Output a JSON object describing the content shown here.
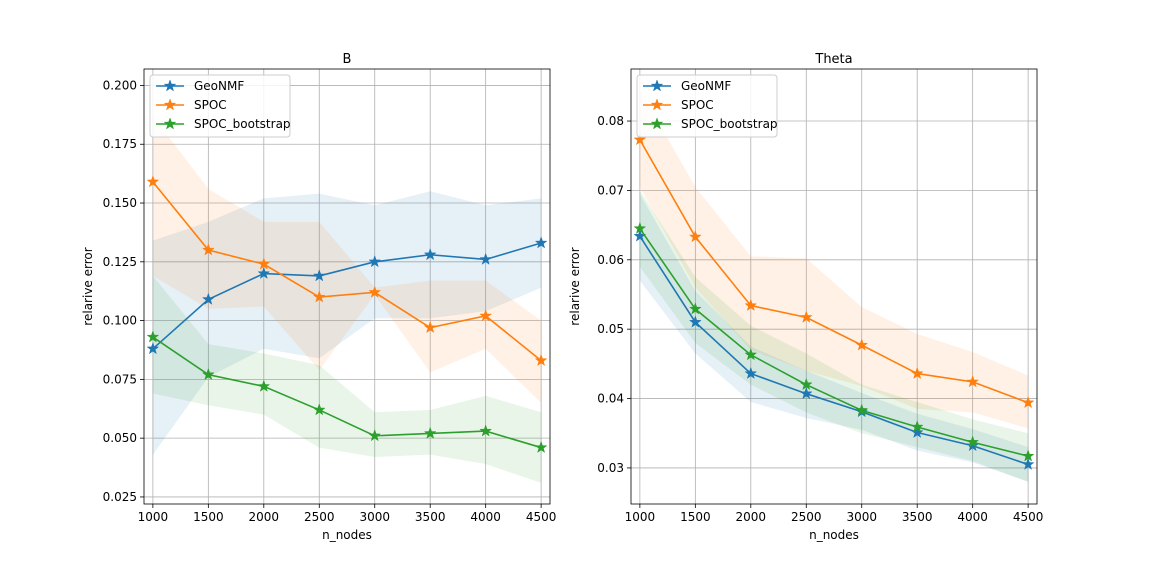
{
  "chart_data": [
    {
      "type": "line",
      "title": "B",
      "xlabel": "n_nodes",
      "ylabel": "relarive error",
      "x": [
        1000,
        1500,
        2000,
        2500,
        3000,
        3500,
        4000,
        4500
      ],
      "xlim": [
        920,
        4580
      ],
      "ylim": [
        0.022,
        0.207
      ],
      "yticks": [
        0.025,
        0.05,
        0.075,
        0.1,
        0.125,
        0.15,
        0.175,
        0.2
      ],
      "ytick_labels": [
        "0.025",
        "0.050",
        "0.075",
        "0.100",
        "0.125",
        "0.150",
        "0.175",
        "0.200"
      ],
      "xticks": [
        1000,
        1500,
        2000,
        2500,
        3000,
        3500,
        4000,
        4500
      ],
      "xtick_labels": [
        "1000",
        "1500",
        "2000",
        "2500",
        "3000",
        "3500",
        "4000",
        "4500"
      ],
      "grid": true,
      "legend_position": "top-left",
      "series": [
        {
          "name": "GeoNMF",
          "color": "#1f77b4",
          "values": [
            0.088,
            0.109,
            0.12,
            0.119,
            0.125,
            0.128,
            0.126,
            0.133
          ],
          "band_upper": [
            0.134,
            0.142,
            0.152,
            0.154,
            0.149,
            0.155,
            0.149,
            0.152
          ],
          "band_lower": [
            0.043,
            0.076,
            0.088,
            0.084,
            0.101,
            0.101,
            0.104,
            0.114
          ]
        },
        {
          "name": "SPOC",
          "color": "#ff7f0e",
          "values": [
            0.159,
            0.13,
            0.124,
            0.11,
            0.112,
            0.097,
            0.102,
            0.083
          ],
          "band_upper": [
            0.187,
            0.156,
            0.142,
            0.142,
            0.114,
            0.117,
            0.117,
            0.1
          ],
          "band_lower": [
            0.119,
            0.105,
            0.106,
            0.079,
            0.111,
            0.078,
            0.088,
            0.065
          ]
        },
        {
          "name": "SPOC_bootstrap",
          "color": "#2ca02c",
          "values": [
            0.093,
            0.077,
            0.072,
            0.062,
            0.051,
            0.052,
            0.053,
            0.046
          ],
          "band_upper": [
            0.119,
            0.09,
            0.086,
            0.081,
            0.061,
            0.062,
            0.068,
            0.061
          ],
          "band_lower": [
            0.069,
            0.064,
            0.06,
            0.046,
            0.042,
            0.043,
            0.039,
            0.031
          ]
        }
      ]
    },
    {
      "type": "line",
      "title": "Theta",
      "xlabel": "n_nodes",
      "ylabel": "relarive error",
      "x": [
        1000,
        1500,
        2000,
        2500,
        3000,
        3500,
        4000,
        4500
      ],
      "xlim": [
        920,
        4580
      ],
      "ylim": [
        0.0248,
        0.0875
      ],
      "yticks": [
        0.03,
        0.04,
        0.05,
        0.06,
        0.07,
        0.08
      ],
      "ytick_labels": [
        "0.03",
        "0.04",
        "0.05",
        "0.06",
        "0.07",
        "0.08"
      ],
      "xticks": [
        1000,
        1500,
        2000,
        2500,
        3000,
        3500,
        4000,
        4500
      ],
      "xtick_labels": [
        "1000",
        "1500",
        "2000",
        "2500",
        "3000",
        "3500",
        "4000",
        "4500"
      ],
      "grid": true,
      "legend_position": "top-left",
      "series": [
        {
          "name": "GeoNMF",
          "color": "#1f77b4",
          "values": [
            0.0634,
            0.051,
            0.0436,
            0.0407,
            0.0381,
            0.0351,
            0.0332,
            0.0305
          ],
          "band_upper": [
            0.0695,
            0.0555,
            0.0475,
            0.044,
            0.0408,
            0.0378,
            0.0356,
            0.033
          ],
          "band_lower": [
            0.057,
            0.0465,
            0.0395,
            0.0372,
            0.0355,
            0.0325,
            0.0308,
            0.028
          ]
        },
        {
          "name": "SPOC",
          "color": "#ff7f0e",
          "values": [
            0.0773,
            0.0633,
            0.0534,
            0.0517,
            0.0477,
            0.0436,
            0.0424,
            0.0394
          ],
          "band_upper": [
            0.0845,
            0.0705,
            0.0605,
            0.0602,
            0.0532,
            0.0493,
            0.0467,
            0.0433
          ],
          "band_lower": [
            0.0705,
            0.056,
            0.047,
            0.044,
            0.0418,
            0.0385,
            0.038,
            0.0357
          ]
        },
        {
          "name": "SPOC_bootstrap",
          "color": "#2ca02c",
          "values": [
            0.0645,
            0.0529,
            0.0463,
            0.042,
            0.0383,
            0.0359,
            0.0337,
            0.0317
          ],
          "band_upper": [
            0.07,
            0.0575,
            0.0505,
            0.0465,
            0.042,
            0.0395,
            0.037,
            0.035
          ],
          "band_lower": [
            0.059,
            0.048,
            0.042,
            0.038,
            0.035,
            0.033,
            0.031,
            0.028
          ]
        }
      ]
    }
  ]
}
